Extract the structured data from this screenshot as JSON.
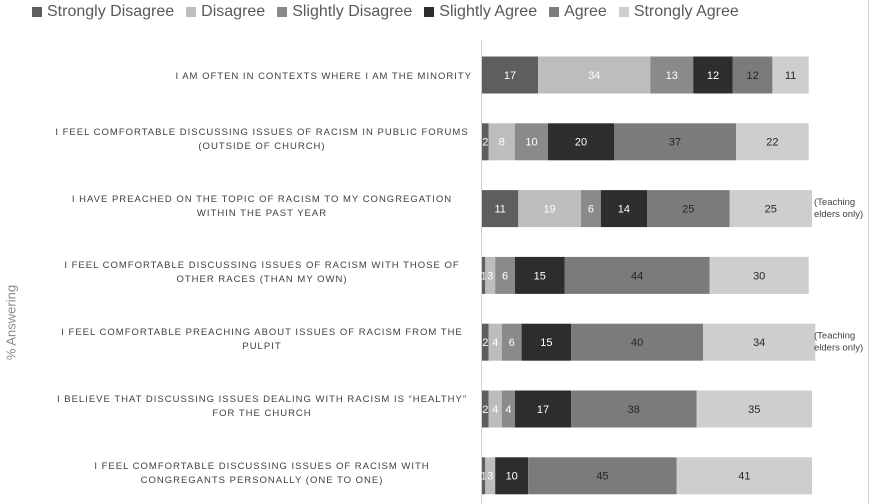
{
  "chart_data": {
    "type": "stacked-bar-horizontal",
    "y_axis_label": "% Answering",
    "categories": [
      "I AM OFTEN IN CONTEXTS WHERE I AM THE MINORITY",
      "I FEEL COMFORTABLE DISCUSSING ISSUES OF RACISM IN PUBLIC FORUMS (OUTSIDE OF CHURCH)",
      "I HAVE PREACHED ON THE TOPIC OF RACISM TO MY CONGREGATION WITHIN THE PAST YEAR",
      "I FEEL COMFORTABLE DISCUSSING ISSUES OF RACISM WITH THOSE OF OTHER RACES (THAN MY OWN)",
      "I FEEL COMFORTABLE PREACHING ABOUT ISSUES OF RACISM FROM THE PULPIT",
      "I BELIEVE THAT DISCUSSING ISSUES DEALING WITH RACISM IS “HEALTHY” FOR THE CHURCH",
      "I FEEL COMFORTABLE DISCUSSING ISSUES OF RACISM WITH CONGREGANTS PERSONALLY (ONE TO ONE)"
    ],
    "notes": [
      null,
      null,
      [
        "(Teaching",
        "elders only)"
      ],
      null,
      [
        "(Teaching",
        "elders only)"
      ],
      null,
      null
    ],
    "series": [
      {
        "name": "Strongly Disagree",
        "color": "#5e5e5e",
        "label_color": "#ffffff",
        "values": [
          17,
          2,
          11,
          1,
          2,
          2,
          1
        ]
      },
      {
        "name": "Disagree",
        "color": "#bdbdbd",
        "label_color": "#ffffff",
        "values": [
          34,
          8,
          19,
          3,
          4,
          4,
          3
        ]
      },
      {
        "name": "Slightly Disagree",
        "color": "#8a8a8a",
        "label_color": "#ffffff",
        "values": [
          13,
          10,
          6,
          6,
          6,
          4,
          0
        ]
      },
      {
        "name": "Slightly Agree",
        "color": "#2d2d2d",
        "label_color": "#ffffff",
        "values": [
          12,
          20,
          14,
          15,
          15,
          17,
          10
        ]
      },
      {
        "name": "Agree",
        "color": "#7b7b7b",
        "label_color": "#262626",
        "values": [
          12,
          37,
          25,
          44,
          40,
          38,
          45
        ]
      },
      {
        "name": "Strongly Agree",
        "color": "#cecece",
        "label_color": "#262626",
        "values": [
          11,
          22,
          25,
          30,
          34,
          35,
          41
        ]
      }
    ],
    "xlim": [
      0,
      100
    ]
  }
}
